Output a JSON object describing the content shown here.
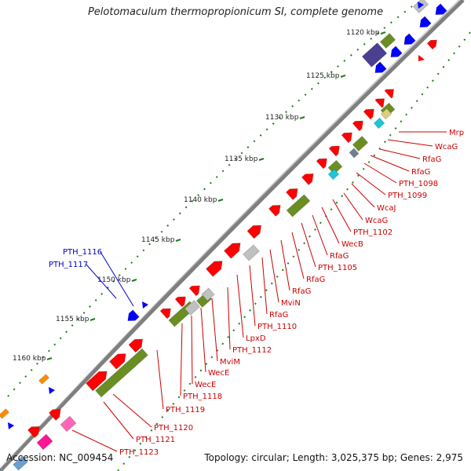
{
  "title": "Pelotomaculum thermopropionicum SI, complete genome",
  "footer": {
    "accession": "Accession: NC_009454",
    "stats": "Topology: circular; Length: 3,025,375 bp; Genes: 2,975"
  },
  "colors": {
    "backbone": "#7f7f7f",
    "cds": "#ff0000",
    "cds_edge": "#b00000",
    "rna": "#0000ff",
    "olive": "#6b8e23",
    "label_red": "#cc0000",
    "label_blue": "#0000cc",
    "tick": "#1a7f1a"
  },
  "ticks": [
    {
      "label": "1120 kbp"
    },
    {
      "label": "1125 kbp"
    },
    {
      "label": "1130 kbp"
    },
    {
      "label": "1135 kbp"
    },
    {
      "label": "1140 kbp"
    },
    {
      "label": "1145 kbp"
    },
    {
      "label": "1150 kbp"
    },
    {
      "label": "1155 kbp"
    },
    {
      "label": "1160 kbp"
    }
  ],
  "gene_labels_right": [
    {
      "text": "Mrp"
    },
    {
      "text": "WcaG"
    },
    {
      "text": "RfaG"
    },
    {
      "text": "RfaG"
    },
    {
      "text": "PTH_1098"
    },
    {
      "text": "PTH_1099"
    },
    {
      "text": "WcaJ"
    },
    {
      "text": "WcaG"
    },
    {
      "text": "PTH_1102"
    },
    {
      "text": "WecB"
    },
    {
      "text": "RfaG"
    },
    {
      "text": "PTH_1105"
    },
    {
      "text": "RfaG"
    },
    {
      "text": "RfaG"
    },
    {
      "text": "MviN"
    },
    {
      "text": "RfaG"
    },
    {
      "text": "PTH_1110"
    },
    {
      "text": "LpxD"
    },
    {
      "text": "PTH_1112"
    },
    {
      "text": "MviM"
    },
    {
      "text": "WecE"
    },
    {
      "text": "WecE"
    },
    {
      "text": "PTH_1118"
    },
    {
      "text": "PTH_1119"
    },
    {
      "text": "PTH_1120"
    },
    {
      "text": "PTH_1121"
    },
    {
      "text": "PTH_1123"
    }
  ],
  "gene_labels_left": [
    {
      "text": "PTH_1116"
    },
    {
      "text": "PTH_1117"
    }
  ]
}
